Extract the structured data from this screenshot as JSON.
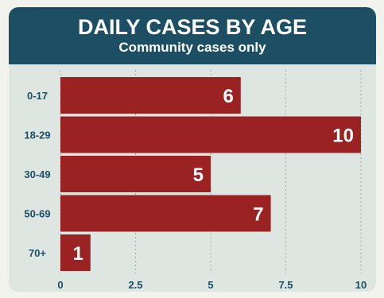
{
  "header": {
    "title": "DAILY CASES BY AGE",
    "subtitle": "Community cases only"
  },
  "colors": {
    "header_bg": "#1c4f63",
    "bar": "#9b2222",
    "panel_bg": "#dde6e1",
    "text": "#1c4f63"
  },
  "chart_data": {
    "type": "bar",
    "orientation": "horizontal",
    "title": "DAILY CASES BY AGE",
    "subtitle": "Community cases only",
    "categories": [
      "0-17",
      "18-29",
      "30-49",
      "50-69",
      "70+"
    ],
    "values": [
      6,
      10,
      5,
      7,
      1
    ],
    "xlim": [
      0,
      10
    ],
    "xticks": [
      "0",
      "2.5",
      "5",
      "7.5",
      "10"
    ],
    "xtick_values": [
      0,
      2.5,
      5,
      7.5,
      10
    ],
    "grid": true,
    "data_labels": true
  }
}
